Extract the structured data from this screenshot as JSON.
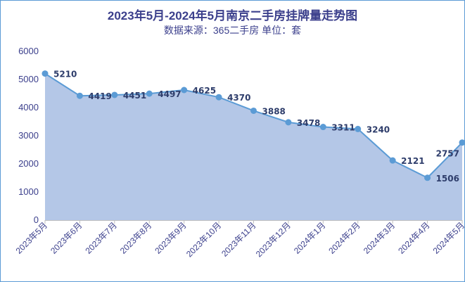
{
  "chart_data": {
    "type": "area",
    "title": "2023年5月-2024年5月南京二手房挂牌量走势图",
    "subtitle": "数据来源：365二手房     单位：套",
    "categories": [
      "2023年5月",
      "2023年6月",
      "2023年7月",
      "2023年8月",
      "2023年9月",
      "2023年10月",
      "2023年11月",
      "2023年12月",
      "2024年1月",
      "2024年2月",
      "2024年3月",
      "2024年4月",
      "2024年5月"
    ],
    "x": [
      2023.375,
      2023.458,
      2023.542,
      2023.625,
      2023.708,
      2023.792,
      2023.875,
      2023.958,
      2024.042,
      2024.125,
      2024.208,
      2024.292,
      2024.375
    ],
    "series": [
      {
        "values": [
          5210,
          4419,
          4451,
          4497,
          4625,
          4370,
          3888,
          3478,
          3311,
          3240,
          2121,
          1506,
          2757
        ],
        "labels": [
          "5210",
          "4419",
          "4451",
          "4497",
          "4625",
          "4370",
          "3888",
          "3478",
          "3311",
          "3240",
          "2121",
          "1506",
          "2757"
        ]
      }
    ],
    "ylim": [
      0,
      6000
    ],
    "yticks": [
      "0",
      "1000",
      "2000",
      "3000",
      "4000",
      "5000",
      "6000"
    ],
    "grid": false,
    "colors": {
      "line": "#5b9bd5",
      "fill": "#b4c7e7",
      "marker": "#5b9bd5"
    }
  }
}
